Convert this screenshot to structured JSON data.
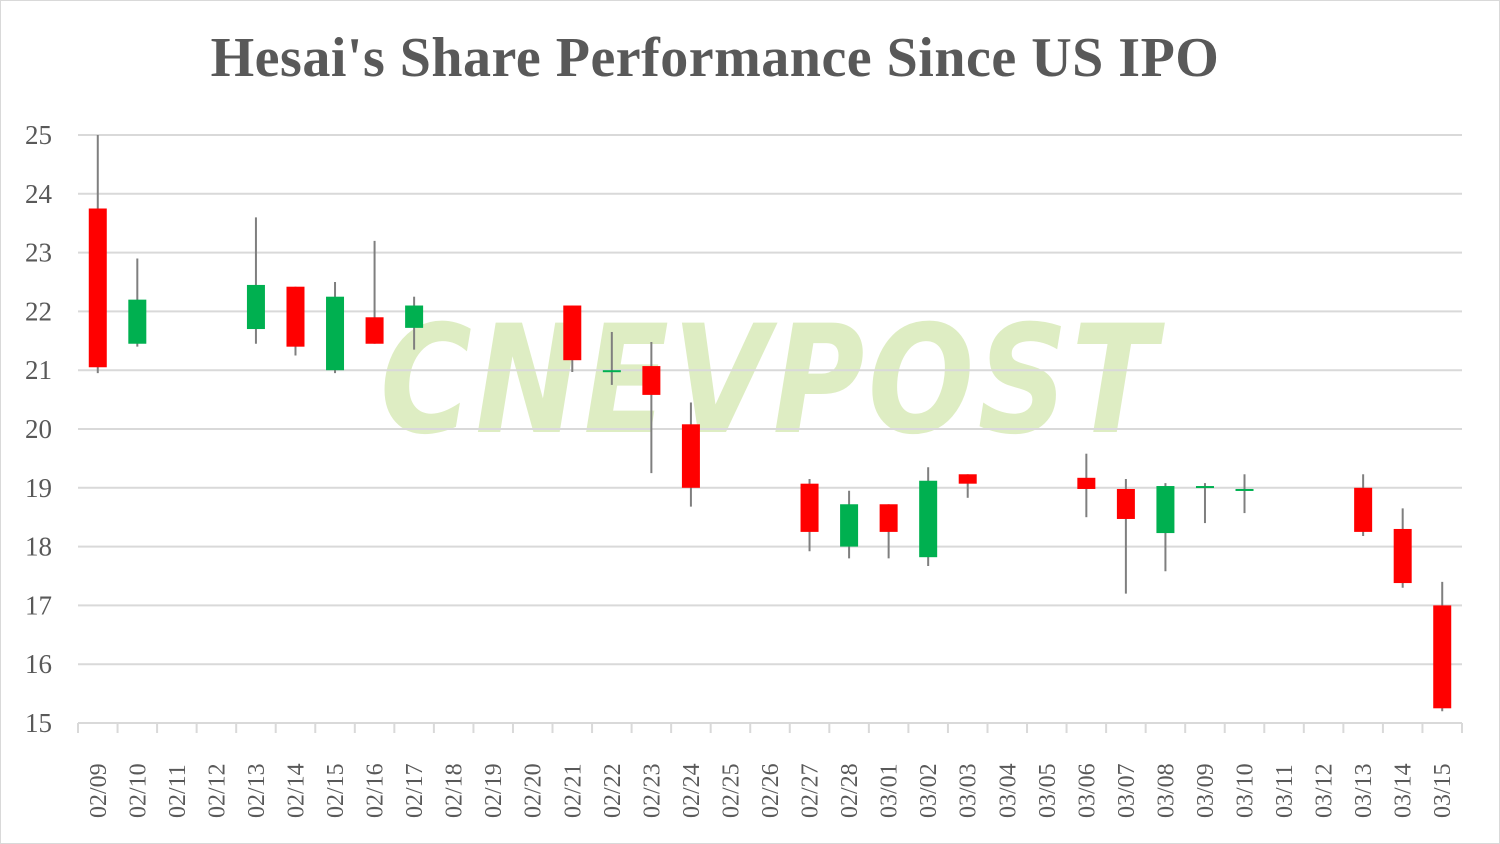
{
  "chart_data": {
    "type": "candlestick",
    "title": "Hesai's Share Performance Since US IPO",
    "watermark": "CNEVPOST",
    "xlabel": "",
    "ylabel": "",
    "ylim": [
      15,
      25
    ],
    "yticks": [
      15,
      16,
      17,
      18,
      19,
      20,
      21,
      22,
      23,
      24,
      25
    ],
    "grid": true,
    "legend": null,
    "colors": {
      "up": "#00b050",
      "down": "#ff0000",
      "wick": "#7f7f7f",
      "grid": "#d9d9d9",
      "text": "#595959",
      "watermark": "#d4e8b0"
    },
    "categories": [
      "02/09",
      "02/10",
      "02/11",
      "02/12",
      "02/13",
      "02/14",
      "02/15",
      "02/16",
      "02/17",
      "02/18",
      "02/19",
      "02/20",
      "02/21",
      "02/22",
      "02/23",
      "02/24",
      "02/25",
      "02/26",
      "02/27",
      "02/28",
      "03/01",
      "03/02",
      "03/03",
      "03/04",
      "03/05",
      "03/06",
      "03/07",
      "03/08",
      "03/09",
      "03/10",
      "03/11",
      "03/12",
      "03/13",
      "03/14",
      "03/15"
    ],
    "series": [
      {
        "date": "02/09",
        "open": 23.75,
        "high": 25.0,
        "low": 20.95,
        "close": 21.05
      },
      {
        "date": "02/10",
        "open": 21.45,
        "high": 22.9,
        "low": 21.4,
        "close": 22.2
      },
      {
        "date": "02/13",
        "open": 21.7,
        "high": 23.6,
        "low": 21.45,
        "close": 22.45
      },
      {
        "date": "02/14",
        "open": 22.42,
        "high": 22.42,
        "low": 21.25,
        "close": 21.4
      },
      {
        "date": "02/15",
        "open": 21.0,
        "high": 22.5,
        "low": 20.95,
        "close": 22.25
      },
      {
        "date": "02/16",
        "open": 21.9,
        "high": 23.2,
        "low": 21.45,
        "close": 21.45
      },
      {
        "date": "02/17",
        "open": 21.72,
        "high": 22.25,
        "low": 21.35,
        "close": 22.1
      },
      {
        "date": "02/21",
        "open": 22.1,
        "high": 22.1,
        "low": 20.97,
        "close": 21.17
      },
      {
        "date": "02/22",
        "open": 21.0,
        "high": 21.65,
        "low": 20.75,
        "close": 21.0
      },
      {
        "date": "02/23",
        "open": 21.07,
        "high": 21.48,
        "low": 19.25,
        "close": 20.58
      },
      {
        "date": "02/24",
        "open": 20.08,
        "high": 20.45,
        "low": 18.68,
        "close": 19.0
      },
      {
        "date": "02/27",
        "open": 19.07,
        "high": 19.15,
        "low": 17.92,
        "close": 18.25
      },
      {
        "date": "02/28",
        "open": 18.0,
        "high": 18.95,
        "low": 17.8,
        "close": 18.72
      },
      {
        "date": "03/01",
        "open": 18.72,
        "high": 18.72,
        "low": 17.8,
        "close": 18.25
      },
      {
        "date": "03/02",
        "open": 17.82,
        "high": 19.35,
        "low": 17.67,
        "close": 19.12
      },
      {
        "date": "03/03",
        "open": 19.23,
        "high": 19.23,
        "low": 18.83,
        "close": 19.07
      },
      {
        "date": "03/06",
        "open": 19.17,
        "high": 19.58,
        "low": 18.5,
        "close": 18.98
      },
      {
        "date": "03/07",
        "open": 18.98,
        "high": 19.15,
        "low": 17.2,
        "close": 18.47
      },
      {
        "date": "03/08",
        "open": 18.23,
        "high": 19.08,
        "low": 17.58,
        "close": 19.03
      },
      {
        "date": "03/09",
        "open": 19.03,
        "high": 19.08,
        "low": 18.4,
        "close": 19.03
      },
      {
        "date": "03/10",
        "open": 18.98,
        "high": 19.23,
        "low": 18.57,
        "close": 18.98
      },
      {
        "date": "03/13",
        "open": 19.0,
        "high": 19.23,
        "low": 18.18,
        "close": 18.25
      },
      {
        "date": "03/14",
        "open": 18.3,
        "high": 18.65,
        "low": 17.3,
        "close": 17.38
      },
      {
        "date": "03/15",
        "open": 17.0,
        "high": 17.4,
        "low": 15.2,
        "close": 15.25
      }
    ]
  }
}
